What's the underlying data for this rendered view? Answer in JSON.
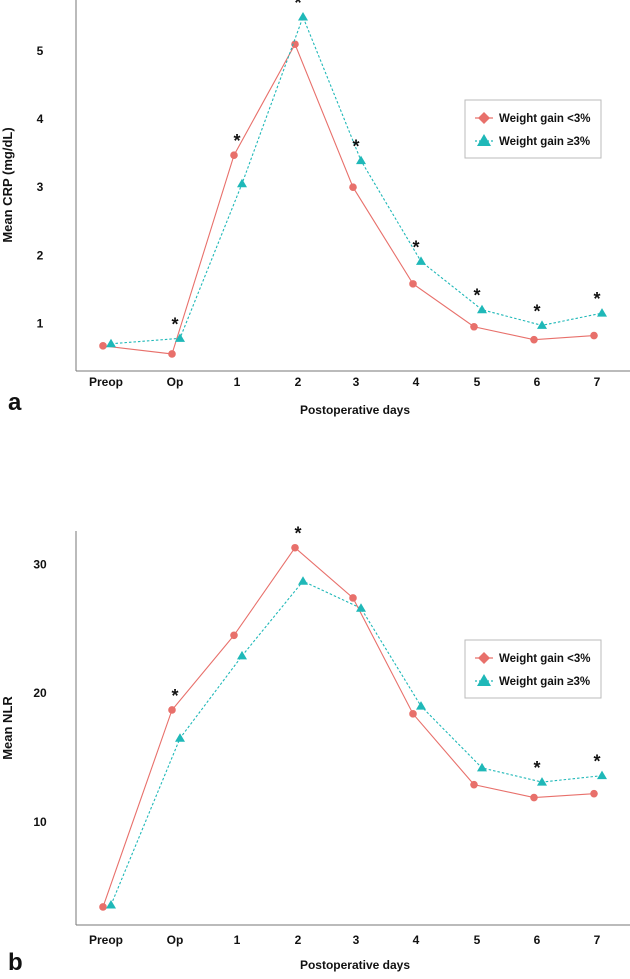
{
  "chart_data": [
    {
      "type": "line",
      "panel_label": "a",
      "xlabel": "Postoperative days",
      "ylabel": "Mean CRP (mg/dL)",
      "categories": [
        "Preop",
        "Op",
        "1",
        "2",
        "3",
        "4",
        "5",
        "6",
        "7"
      ],
      "yticks": [
        1,
        2,
        3,
        4,
        5
      ],
      "ylim": [
        0.3,
        5.75
      ],
      "series": [
        {
          "name": "Weight gain <3%",
          "color": "#e8706b",
          "marker": "diamond",
          "style": "solid",
          "values": [
            0.67,
            0.55,
            3.47,
            5.1,
            3.0,
            1.58,
            0.95,
            0.76,
            0.82
          ]
        },
        {
          "name": "Weight gain ≥3%",
          "color": "#1fb8b8",
          "marker": "triangle",
          "style": "dotted",
          "values": [
            0.7,
            0.78,
            3.05,
            5.5,
            3.39,
            1.91,
            1.2,
            0.97,
            1.15
          ]
        }
      ],
      "significance_marker": "*",
      "significant_categories": [
        "Op",
        "1",
        "2",
        "3",
        "4",
        "5",
        "6",
        "7"
      ],
      "legend": "right"
    },
    {
      "type": "line",
      "panel_label": "b",
      "xlabel": "Postoperative days",
      "ylabel": "Mean NLR",
      "categories": [
        "Preop",
        "Op",
        "1",
        "2",
        "3",
        "4",
        "5",
        "6",
        "7"
      ],
      "yticks": [
        10,
        20,
        30
      ],
      "ylim": [
        2.0,
        32.6
      ],
      "series": [
        {
          "name": "Weight gain <3%",
          "color": "#e8706b",
          "marker": "diamond",
          "style": "solid",
          "values": [
            3.4,
            18.7,
            24.5,
            31.3,
            27.4,
            18.4,
            12.9,
            11.9,
            12.2
          ]
        },
        {
          "name": "Weight gain ≥3%",
          "color": "#1fb8b8",
          "marker": "triangle",
          "style": "dotted",
          "values": [
            3.55,
            16.5,
            22.9,
            28.7,
            26.6,
            19.0,
            14.2,
            13.1,
            13.6
          ]
        }
      ],
      "significance_marker": "*",
      "significant_categories": [
        "Op",
        "2",
        "6",
        "7"
      ],
      "legend": "right"
    }
  ]
}
